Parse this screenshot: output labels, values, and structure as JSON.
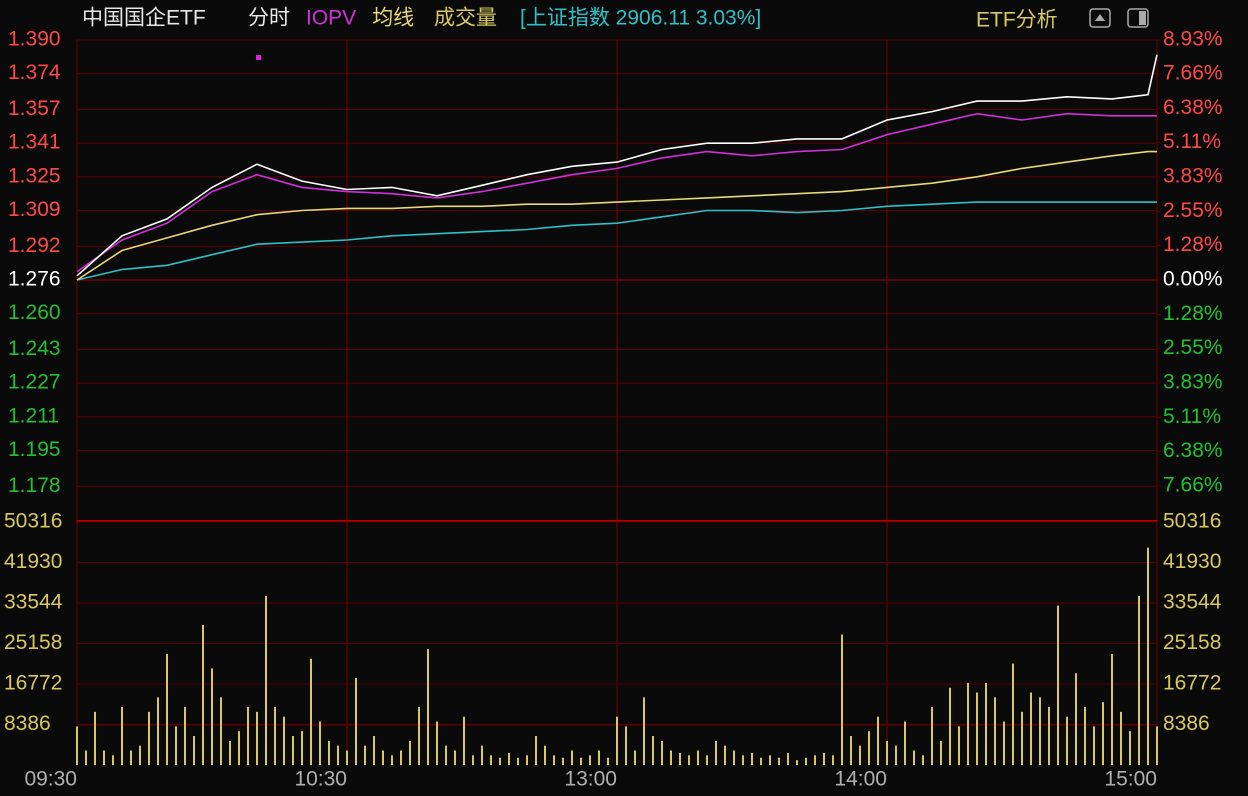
{
  "header": {
    "title": "中国国企ETF",
    "index_info": "[上证指数 2906.11 3.03%]",
    "analysis": "ETF分析"
  },
  "chart_data": [
    {
      "type": "line",
      "x": [
        0,
        10,
        20,
        30,
        40,
        50,
        60,
        70,
        80,
        90,
        100,
        110,
        120,
        130,
        140,
        150,
        160,
        170,
        180,
        190,
        200,
        210,
        220,
        230,
        238,
        240
      ],
      "xlim": [
        0,
        240
      ],
      "xticks": [
        {
          "value": 0,
          "label": "09:30"
        },
        {
          "value": 60,
          "label": "10:30"
        },
        {
          "value": 120,
          "label": "13:00"
        },
        {
          "value": 180,
          "label": "14:00"
        },
        {
          "value": 240,
          "label": "15:00"
        }
      ],
      "ylim": [
        1.162,
        1.39
      ],
      "yticks": [
        {
          "value": 1.39,
          "label": "1.390"
        },
        {
          "value": 1.374,
          "label": "1.374"
        },
        {
          "value": 1.357,
          "label": "1.357"
        },
        {
          "value": 1.341,
          "label": "1.341"
        },
        {
          "value": 1.325,
          "label": "1.325"
        },
        {
          "value": 1.309,
          "label": "1.309"
        },
        {
          "value": 1.292,
          "label": "1.292"
        },
        {
          "value": 1.276,
          "label": "1.276"
        },
        {
          "value": 1.26,
          "label": "1.260"
        },
        {
          "value": 1.243,
          "label": "1.243"
        },
        {
          "value": 1.227,
          "label": "1.227"
        },
        {
          "value": 1.211,
          "label": "1.211"
        },
        {
          "value": 1.195,
          "label": "1.195"
        },
        {
          "value": 1.178,
          "label": "1.178"
        }
      ],
      "y2lim": [
        -8.93,
        8.93
      ],
      "y2ticks": [
        {
          "value": 8.93,
          "label": "8.93%"
        },
        {
          "value": 7.66,
          "label": "7.66%"
        },
        {
          "value": 6.38,
          "label": "6.38%"
        },
        {
          "value": 5.11,
          "label": "5.11%"
        },
        {
          "value": 3.83,
          "label": "3.83%"
        },
        {
          "value": 2.55,
          "label": "2.55%"
        },
        {
          "value": 1.28,
          "label": "1.28%"
        },
        {
          "value": 0,
          "label": "0.00%"
        },
        {
          "value": -1.28,
          "label": "1.28%"
        },
        {
          "value": -2.55,
          "label": "2.55%"
        },
        {
          "value": -3.83,
          "label": "3.83%"
        },
        {
          "value": -5.11,
          "label": "5.11%"
        },
        {
          "value": -6.38,
          "label": "6.38%"
        },
        {
          "value": -7.66,
          "label": "7.66%"
        }
      ],
      "grid": true,
      "series": [
        {
          "color": "#30c0c8",
          "values": [
            1.276,
            1.281,
            1.283,
            1.288,
            1.293,
            1.294,
            1.295,
            1.297,
            1.298,
            1.299,
            1.3,
            1.302,
            1.303,
            1.306,
            1.309,
            1.309,
            1.308,
            1.309,
            1.311,
            1.312,
            1.313,
            1.313,
            1.313,
            1.313,
            1.313,
            1.313
          ]
        },
        {
          "name": "均线",
          "color": "#e8d878",
          "values": [
            1.276,
            1.29,
            1.296,
            1.302,
            1.307,
            1.309,
            1.31,
            1.31,
            1.311,
            1.311,
            1.312,
            1.312,
            1.313,
            1.314,
            1.315,
            1.316,
            1.317,
            1.318,
            1.32,
            1.322,
            1.325,
            1.329,
            1.332,
            1.335,
            1.337,
            1.337
          ]
        },
        {
          "name": "IOPV",
          "color": "#d030d8",
          "values": [
            1.28,
            1.295,
            1.303,
            1.318,
            1.326,
            1.32,
            1.318,
            1.317,
            1.315,
            1.318,
            1.322,
            1.326,
            1.329,
            1.334,
            1.337,
            1.335,
            1.337,
            1.338,
            1.345,
            1.35,
            1.355,
            1.352,
            1.355,
            1.354,
            1.354,
            1.354
          ]
        },
        {
          "name": "分时",
          "color": "#ffffff",
          "values": [
            1.278,
            1.297,
            1.305,
            1.32,
            1.331,
            1.323,
            1.319,
            1.32,
            1.316,
            1.321,
            1.326,
            1.33,
            1.332,
            1.338,
            1.341,
            1.341,
            1.343,
            1.343,
            1.352,
            1.356,
            1.361,
            1.361,
            1.363,
            1.362,
            1.364,
            1.383
          ]
        }
      ]
    },
    {
      "type": "bar",
      "title": "成交量",
      "color": "#d8c860",
      "x": [
        0,
        2,
        4,
        6,
        8,
        10,
        12,
        14,
        16,
        18,
        20,
        22,
        24,
        26,
        28,
        30,
        32,
        34,
        36,
        38,
        40,
        42,
        44,
        46,
        48,
        50,
        52,
        54,
        56,
        58,
        60,
        62,
        64,
        66,
        68,
        70,
        72,
        74,
        76,
        78,
        80,
        82,
        84,
        86,
        88,
        90,
        92,
        94,
        96,
        98,
        100,
        102,
        104,
        106,
        108,
        110,
        112,
        114,
        116,
        118,
        120,
        122,
        124,
        126,
        128,
        130,
        132,
        134,
        136,
        138,
        140,
        142,
        144,
        146,
        148,
        150,
        152,
        154,
        156,
        158,
        160,
        162,
        164,
        166,
        168,
        170,
        172,
        174,
        176,
        178,
        180,
        182,
        184,
        186,
        188,
        190,
        192,
        194,
        196,
        198,
        200,
        202,
        204,
        206,
        208,
        210,
        212,
        214,
        216,
        218,
        220,
        222,
        224,
        226,
        228,
        230,
        232,
        234,
        236,
        238,
        240
      ],
      "xlim": [
        0,
        240
      ],
      "values": [
        8000,
        3000,
        11000,
        3000,
        2000,
        12000,
        3000,
        4000,
        11000,
        14000,
        23000,
        8000,
        12000,
        6000,
        29000,
        20000,
        14000,
        5000,
        7000,
        12000,
        11000,
        35000,
        12000,
        10000,
        6000,
        7000,
        22000,
        9000,
        5000,
        4000,
        3000,
        18000,
        4000,
        6000,
        3000,
        2000,
        3000,
        5000,
        12000,
        24000,
        9000,
        4000,
        3000,
        10000,
        2000,
        4000,
        2000,
        1500,
        2500,
        1500,
        2000,
        6000,
        4000,
        2000,
        1500,
        3000,
        1500,
        2000,
        3000,
        1500,
        10000,
        8000,
        3000,
        14000,
        6000,
        5000,
        3000,
        2500,
        2000,
        3000,
        2000,
        5000,
        4000,
        3000,
        2000,
        2500,
        1500,
        2000,
        1500,
        2500,
        1000,
        1500,
        2000,
        2500,
        2000,
        27000,
        6000,
        4000,
        7000,
        10000,
        5000,
        4000,
        9000,
        3000,
        2000,
        12000,
        5000,
        16000,
        8000,
        17000,
        15000,
        17000,
        14000,
        9000,
        21000,
        11000,
        15000,
        14000,
        12000,
        33000,
        10000,
        19000,
        12000,
        8000,
        13000,
        23000,
        11000,
        7000,
        35000,
        45000,
        8000
      ],
      "ylim": [
        0,
        50316
      ],
      "yticks": [
        8386,
        16772,
        25158,
        33544,
        41930,
        50316
      ],
      "grid": true
    }
  ]
}
